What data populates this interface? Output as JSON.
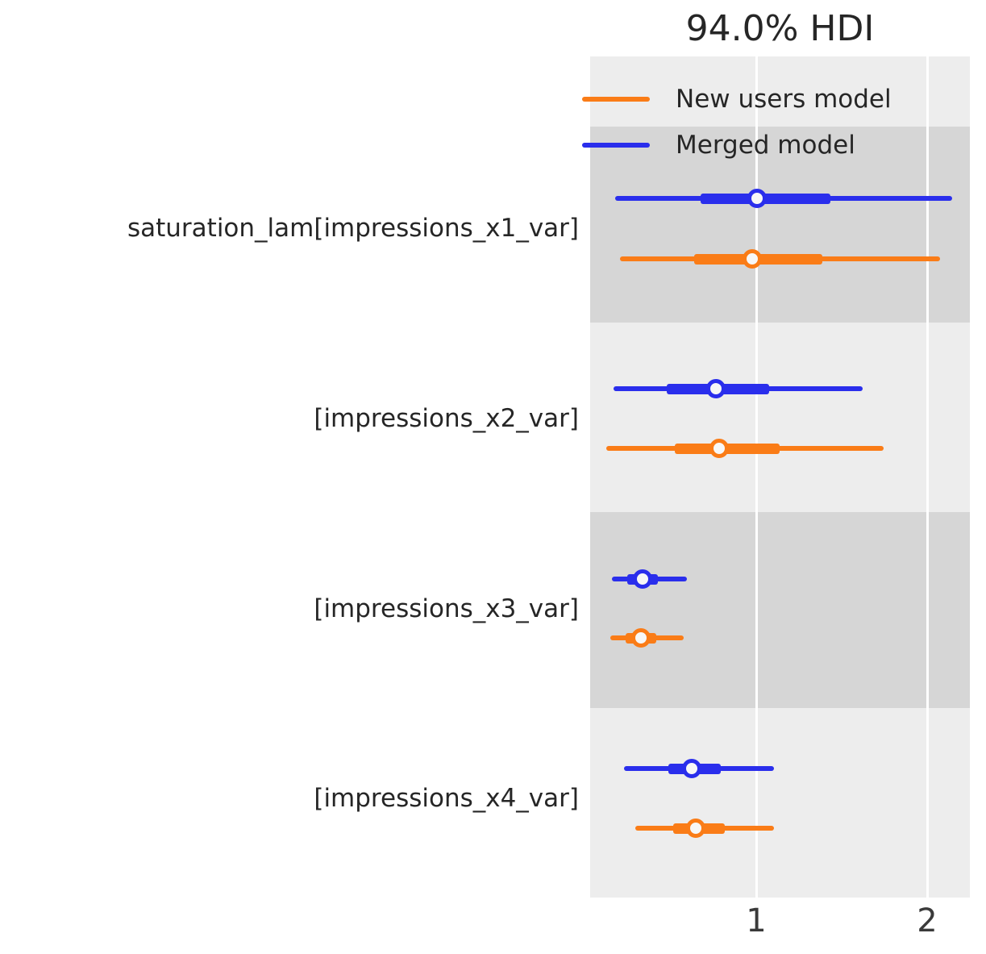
{
  "title": "94.0% HDI",
  "legend": {
    "items": [
      {
        "label": "New users model",
        "color": "#fa7c17"
      },
      {
        "label": "Merged model",
        "color": "#2a2eec"
      }
    ]
  },
  "x_axis": {
    "tick_labels": [
      "1",
      "2"
    ]
  },
  "colors": {
    "blue": "#2a2eec",
    "orange": "#fa7c17",
    "band_dark": "#d6d6d6",
    "band_light": "#ededed",
    "gridline": "#ffffff"
  },
  "chart_data": {
    "type": "forest",
    "title": "94.0% HDI",
    "hdi_prob": 0.94,
    "orientation": "horizontal",
    "xlabel": "",
    "ylabel": "",
    "x_ticks": [
      1,
      2
    ],
    "x_range": [
      0.02,
      2.25
    ],
    "grid": "white vertical gridlines at x ticks",
    "legend_position": "upper left inside plot",
    "background": "alternating gray bands per parameter",
    "parameters": [
      "saturation_lam[impressions_x1_var]",
      "[impressions_x2_var]",
      "[impressions_x3_var]",
      "[impressions_x4_var]"
    ],
    "series": [
      {
        "name": "New users model",
        "color": "#fa7c17",
        "rows": [
          {
            "parameter": "saturation_lam[impressions_x1_var]",
            "hdi_94": [
              0.2,
              2.07
            ],
            "iqr": [
              0.63,
              1.38
            ],
            "median": 0.97
          },
          {
            "parameter": "[impressions_x2_var]",
            "hdi_94": [
              0.12,
              1.74
            ],
            "iqr": [
              0.52,
              1.13
            ],
            "median": 0.78
          },
          {
            "parameter": "[impressions_x3_var]",
            "hdi_94": [
              0.14,
              0.57
            ],
            "iqr": [
              0.23,
              0.41
            ],
            "median": 0.32
          },
          {
            "parameter": "[impressions_x4_var]",
            "hdi_94": [
              0.29,
              1.1
            ],
            "iqr": [
              0.51,
              0.81
            ],
            "median": 0.64
          }
        ]
      },
      {
        "name": "Merged model",
        "color": "#2a2eec",
        "rows": [
          {
            "parameter": "saturation_lam[impressions_x1_var]",
            "hdi_94": [
              0.17,
              2.14
            ],
            "iqr": [
              0.67,
              1.43
            ],
            "median": 1.0
          },
          {
            "parameter": "[impressions_x2_var]",
            "hdi_94": [
              0.16,
              1.62
            ],
            "iqr": [
              0.47,
              1.07
            ],
            "median": 0.76
          },
          {
            "parameter": "[impressions_x3_var]",
            "hdi_94": [
              0.15,
              0.59
            ],
            "iqr": [
              0.24,
              0.42
            ],
            "median": 0.33
          },
          {
            "parameter": "[impressions_x4_var]",
            "hdi_94": [
              0.22,
              1.1
            ],
            "iqr": [
              0.48,
              0.79
            ],
            "median": 0.62
          }
        ]
      }
    ]
  }
}
